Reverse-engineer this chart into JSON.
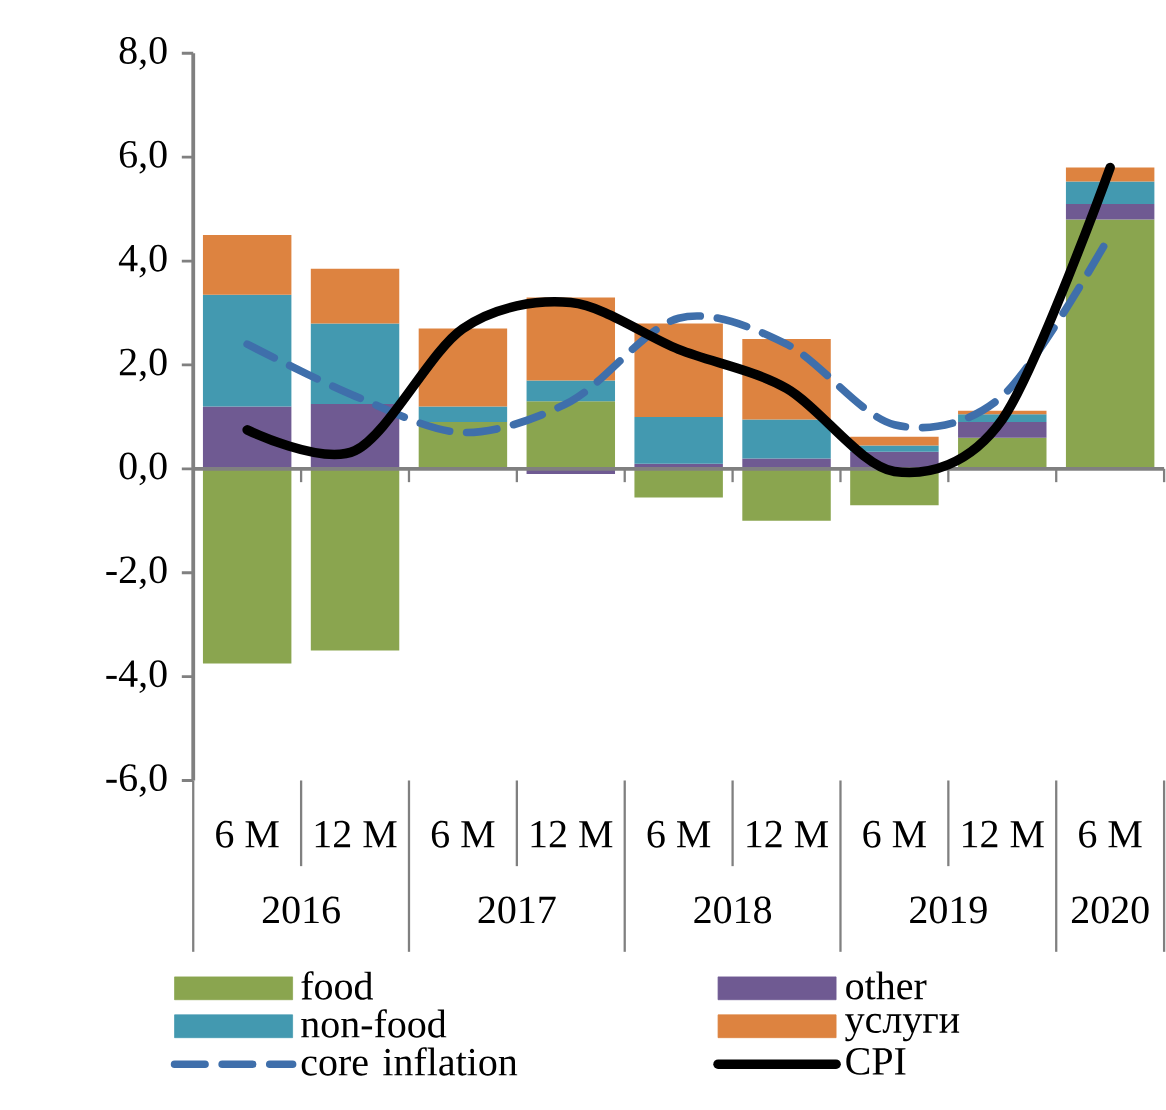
{
  "chart_data": {
    "type": "bar",
    "stacked": true,
    "categories": [
      "6 M",
      "12 M",
      "6 M",
      "12 M",
      "6 M",
      "12 M",
      "6 M",
      "12 M",
      "6 M"
    ],
    "annotations": [
      "2016",
      "2017",
      "2018",
      "2019",
      "2020"
    ],
    "ylim": [
      -6,
      8
    ],
    "yticks": [
      {
        "value": -6,
        "label": "-6,0"
      },
      {
        "value": -4,
        "label": "-4,0"
      },
      {
        "value": -2,
        "label": "-2,0"
      },
      {
        "value": 0,
        "label": "0,0"
      },
      {
        "value": 2,
        "label": "2,0"
      },
      {
        "value": 4,
        "label": "4,0"
      },
      {
        "value": 6,
        "label": "6,0"
      },
      {
        "value": 8,
        "label": "8,0"
      }
    ],
    "legend": "bottom",
    "series": [
      {
        "name": "food",
        "color": "#8aa54f",
        "values": [
          -3.75,
          -3.5,
          0.9,
          1.3,
          -0.55,
          -1.0,
          -0.7,
          0.6,
          4.8
        ]
      },
      {
        "name": "other",
        "color": "#6f5a92",
        "values": [
          1.2,
          1.25,
          0.0,
          -0.1,
          0.1,
          0.2,
          0.33,
          0.3,
          0.3
        ]
      },
      {
        "name": "non-food",
        "color": "#4399b0",
        "values": [
          2.15,
          1.55,
          0.3,
          0.4,
          0.9,
          0.75,
          0.12,
          0.15,
          0.43
        ]
      },
      {
        "name": "услуги",
        "color": "#dd8340",
        "values": [
          1.15,
          1.05,
          1.5,
          1.6,
          1.8,
          1.55,
          0.17,
          0.07,
          0.27
        ]
      },
      {
        "name": "core inflation",
        "type": "line",
        "line_style": "dashed",
        "color": "#3f6fab",
        "values": [
          2.4,
          1.4,
          0.7,
          1.3,
          2.9,
          2.4,
          0.85,
          1.4,
          4.5
        ]
      },
      {
        "name": "CPI",
        "type": "line",
        "line_style": "solid",
        "color": "#000000",
        "values": [
          0.75,
          0.35,
          2.7,
          3.2,
          2.3,
          1.55,
          -0.05,
          0.95,
          5.8
        ]
      }
    ]
  }
}
